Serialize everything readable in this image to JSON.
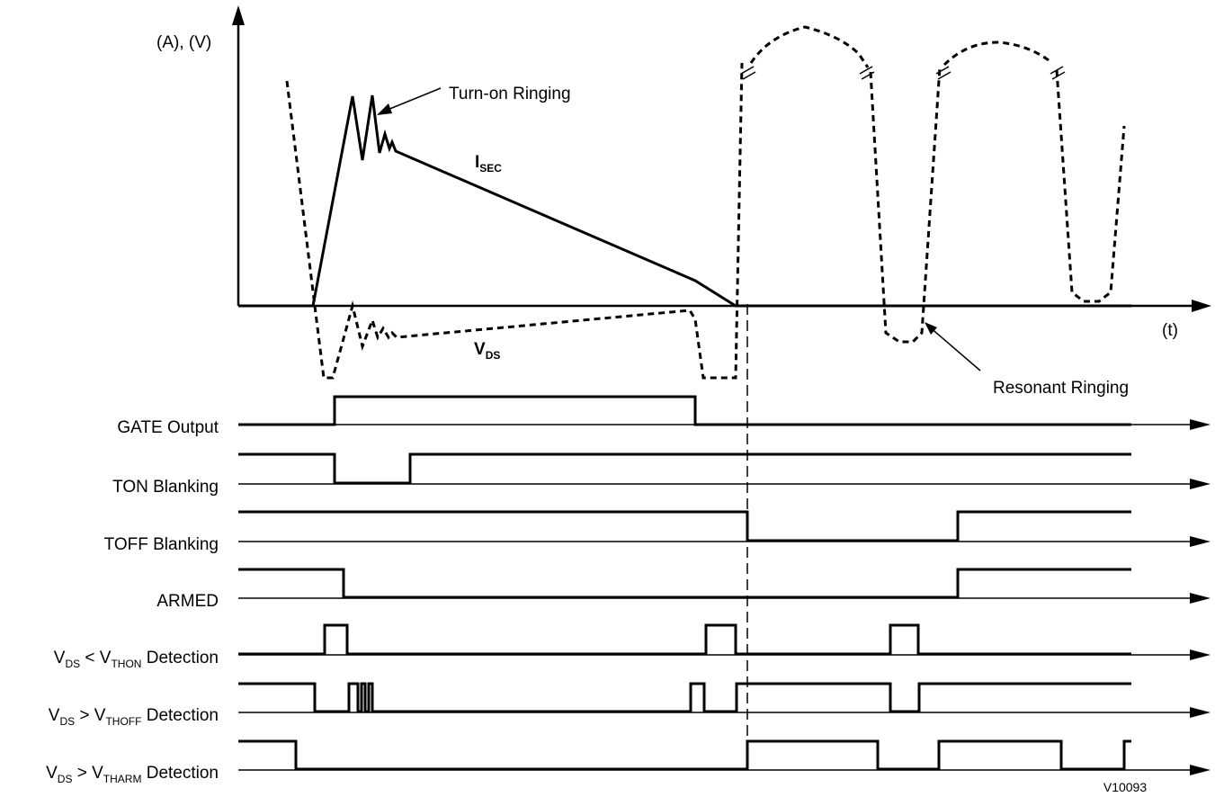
{
  "axis": {
    "y_label": "(A), (V)",
    "x_label": "(t)"
  },
  "annotations": {
    "turn_on_ringing": "Turn-on Ringing",
    "resonant_ringing": "Resonant Ringing",
    "isec": {
      "main": "I",
      "sub": "SEC"
    },
    "vds": {
      "main": "V",
      "sub": "DS"
    },
    "figure_id": "V10093"
  },
  "signals": [
    {
      "id": "gate-output",
      "label": "GATE Output"
    },
    {
      "id": "ton-blanking",
      "label": "TON Blanking"
    },
    {
      "id": "toff-blanking",
      "label": "TOFF Blanking"
    },
    {
      "id": "armed",
      "label": "ARMED"
    },
    {
      "id": "vds-lt-vthon",
      "parts": {
        "a": "V",
        "a_sub": "DS",
        "op": " < V",
        "b_sub": "THON",
        "tail": " Detection"
      }
    },
    {
      "id": "vds-gt-vthoff",
      "parts": {
        "a": "V",
        "a_sub": "DS",
        "op": " > V",
        "b_sub": "THOFF",
        "tail": " Detection"
      }
    },
    {
      "id": "vds-gt-vtharm",
      "parts": {
        "a": "V",
        "a_sub": "DS",
        "op": " > V",
        "b_sub": "THARM",
        "tail": " Detection"
      }
    }
  ]
}
